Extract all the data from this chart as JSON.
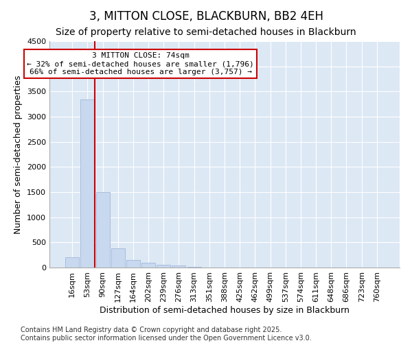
{
  "title": "3, MITTON CLOSE, BLACKBURN, BB2 4EH",
  "subtitle": "Size of property relative to semi-detached houses in Blackburn",
  "xlabel": "Distribution of semi-detached houses by size in Blackburn",
  "ylabel": "Number of semi-detached properties",
  "footnote": "Contains HM Land Registry data © Crown copyright and database right 2025.\nContains public sector information licensed under the Open Government Licence v3.0.",
  "bar_labels": [
    "16sqm",
    "53sqm",
    "90sqm",
    "127sqm",
    "164sqm",
    "202sqm",
    "239sqm",
    "276sqm",
    "313sqm",
    "351sqm",
    "388sqm",
    "425sqm",
    "462sqm",
    "499sqm",
    "537sqm",
    "574sqm",
    "611sqm",
    "648sqm",
    "686sqm",
    "723sqm",
    "760sqm"
  ],
  "bar_values": [
    200,
    3340,
    1500,
    380,
    155,
    90,
    60,
    40,
    15,
    5,
    0,
    0,
    0,
    0,
    0,
    0,
    0,
    0,
    0,
    0,
    0
  ],
  "bar_color": "#c8d8ef",
  "bar_edge_color": "#a0b8d8",
  "marker_label": "3 MITTON CLOSE: 74sqm",
  "smaller_pct": 32,
  "smaller_count": 1796,
  "larger_pct": 66,
  "larger_count": 3757,
  "vline_color": "#cc0000",
  "box_edge_color": "#cc0000",
  "ylim": [
    0,
    4500
  ],
  "yticks": [
    0,
    500,
    1000,
    1500,
    2000,
    2500,
    3000,
    3500,
    4000,
    4500
  ],
  "fig_bg_color": "#ffffff",
  "plot_bg_color": "#dde8f5",
  "title_fontsize": 12,
  "subtitle_fontsize": 10,
  "axis_label_fontsize": 9,
  "tick_fontsize": 8,
  "footnote_fontsize": 7
}
